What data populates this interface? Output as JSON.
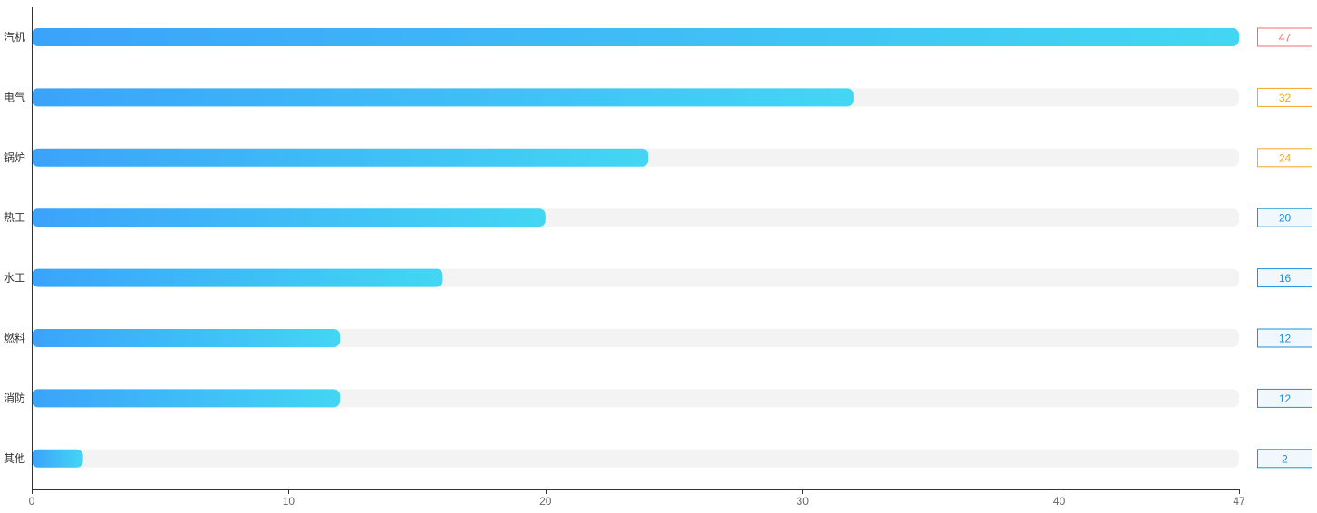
{
  "chart_data": {
    "type": "bar",
    "orientation": "horizontal",
    "categories": [
      "汽机",
      "电气",
      "锅炉",
      "热工",
      "水工",
      "燃料",
      "消防",
      "其他"
    ],
    "values": [
      47,
      32,
      24,
      20,
      16,
      12,
      12,
      2
    ],
    "x_ticks": [
      0,
      10,
      20,
      30,
      40,
      47
    ],
    "xlim": [
      0,
      47
    ],
    "title": "",
    "xlabel": "",
    "ylabel": "",
    "grid": false,
    "legend": "none",
    "colors": {
      "bar_gradient_start": "#3BA3FA",
      "bar_gradient_end": "#43D6F3",
      "track": "#F3F3F3",
      "axis": "#333333",
      "rank_1": "#F56C6C",
      "rank_2": "#F5A623",
      "rank_3": "#F5A623",
      "rank_other": "#1E90D8",
      "rank_other_fill": "#F1F8FD"
    }
  }
}
